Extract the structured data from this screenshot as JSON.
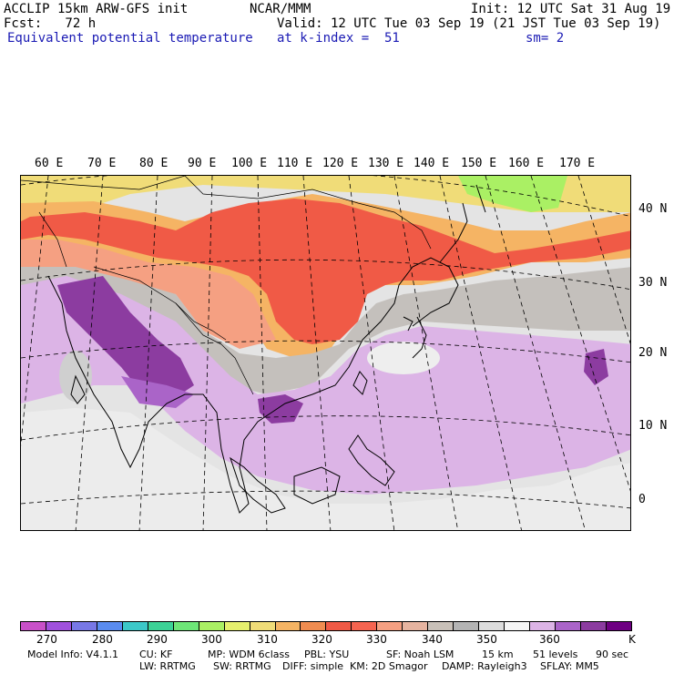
{
  "header": {
    "left1": "ACCLIP 15km ARW-GFS init",
    "center1": "NCAR/MMM",
    "right1": "Init: 12 UTC Sat 31 Aug 19",
    "left2": "Fcst:   72 h",
    "right2": "Valid: 12 UTC Tue 03 Sep 19 (21 JST Tue 03 Sep 19)",
    "left3": "Equivalent potential temperature",
    "center3": "at k-index =  51",
    "right3": "sm= 2"
  },
  "lon_labels": [
    "60 E",
    "70 E",
    "80 E",
    "90 E",
    "100 E",
    "110 E",
    "120 E",
    "130 E",
    "140 E",
    "150 E",
    "160 E",
    "170 E"
  ],
  "lat_labels": [
    "40 N",
    "30 N",
    "20 N",
    "10 N",
    "0"
  ],
  "colorbar": {
    "colors": [
      "#c850c8",
      "#a050dc",
      "#7878e6",
      "#5a8cf0",
      "#3cc8c8",
      "#3cd296",
      "#6ee678",
      "#aaf064",
      "#e6f06e",
      "#f0dc78",
      "#f5b464",
      "#f08c50",
      "#f05a46",
      "#f56450",
      "#f5a082",
      "#e6b4a0",
      "#c8c0b8",
      "#b4b4b4",
      "#dcdcdc",
      "#f5f5f5",
      "#dcb4e6",
      "#aa64c8",
      "#8c3ca0",
      "#6e0082"
    ],
    "labels": [
      "270",
      "280",
      "290",
      "300",
      "310",
      "320",
      "330",
      "340",
      "350",
      "360"
    ],
    "unit": "K"
  },
  "footer": {
    "line1": [
      "Model Info: V4.1.1",
      "CU: KF",
      "MP: WDM 6class",
      "PBL: YSU",
      "SF: Noah LSM",
      "15 km",
      "51 levels",
      "90 sec"
    ],
    "line2": [
      "LW: RRTMG",
      "SW: RRTMG",
      "DIFF: simple",
      "KM: 2D Smagor",
      "DAMP: Rayleigh3",
      "SFLAY: MM5"
    ]
  }
}
